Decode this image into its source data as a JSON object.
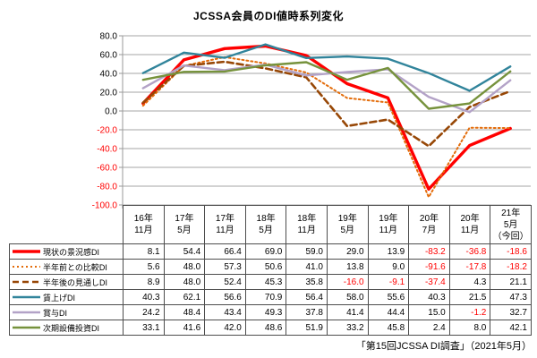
{
  "title": "JCSSA会員のDI値時系列変化",
  "footer": "「第15回JCSSA DI調査」（2021年5月）",
  "chart_data": {
    "type": "line",
    "categories": [
      "16年\n11月",
      "17年\n5月",
      "17年\n11月",
      "18年\n5月",
      "18年\n11月",
      "19年\n5月",
      "19年\n11月",
      "20年\n7月",
      "20年\n11月",
      "21年\n5月\n（今回）"
    ],
    "series": [
      {
        "name": "現状の景況感DI",
        "style": "solid-thick",
        "color": "#ff0000",
        "values": [
          8.1,
          54.4,
          66.4,
          69.0,
          59.0,
          29.0,
          13.9,
          -83.2,
          -36.8,
          -18.6
        ]
      },
      {
        "name": "半年前との比較DI",
        "style": "dotted",
        "color": "#e36c0a",
        "values": [
          5.6,
          48.0,
          57.3,
          50.6,
          41.0,
          13.8,
          9.0,
          -91.6,
          -17.8,
          -18.2
        ]
      },
      {
        "name": "半年後の見通しDI",
        "style": "dashed",
        "color": "#974706",
        "values": [
          8.9,
          48.0,
          52.4,
          45.3,
          35.8,
          -16.0,
          -9.1,
          -37.4,
          4.3,
          21.1
        ]
      },
      {
        "name": "賃上げDI",
        "style": "solid",
        "color": "#31849b",
        "values": [
          40.3,
          62.1,
          56.6,
          70.9,
          56.4,
          58.0,
          55.6,
          40.3,
          21.5,
          47.3
        ]
      },
      {
        "name": "賞与DI",
        "style": "solid",
        "color": "#b3a2c7",
        "values": [
          24.2,
          48.4,
          43.4,
          49.3,
          37.8,
          41.4,
          44.4,
          15.0,
          -1.2,
          32.7
        ]
      },
      {
        "name": "次期設備投資DI",
        "style": "solid",
        "color": "#76923c",
        "values": [
          33.1,
          41.6,
          42.0,
          48.6,
          51.9,
          33.2,
          45.8,
          2.4,
          8.0,
          42.1
        ]
      }
    ],
    "ylim": [
      -100,
      80
    ],
    "ytick_step": 20,
    "ytick_labels": [
      "80.0",
      "60.0",
      "40.0",
      "20.0",
      "0.0",
      "-20.0",
      "-40.0",
      "-60.0",
      "-80.0",
      "-100.0"
    ],
    "grid": true,
    "legend_position": "table-first-column",
    "colors": {
      "gridline": "#a6a6a6",
      "axis": "#9a9a9a",
      "negative_text": "#ff0000",
      "positive_text": "#000000"
    }
  }
}
